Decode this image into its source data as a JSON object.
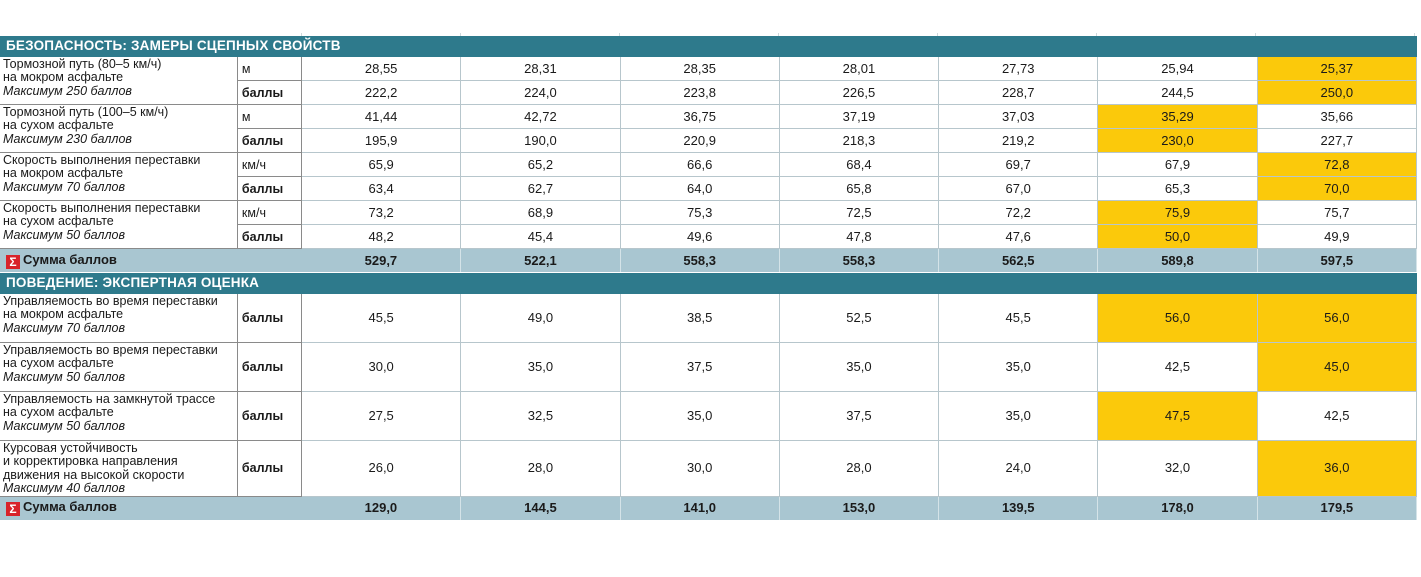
{
  "sections": [
    {
      "title": "БЕЗОПАСНОСТЬ: ЗАМЕРЫ СЦЕПНЫХ СВОЙСТВ",
      "metrics": [
        {
          "label": [
            "Тормозной путь (80–5 км/ч)",
            "на мокром асфальте"
          ],
          "max": "Максимум 250 баллов",
          "unit": "м",
          "points_label": "баллы",
          "measured": [
            "28,55",
            "28,31",
            "28,35",
            "28,01",
            "27,73",
            "25,94",
            "25,37"
          ],
          "points": [
            "222,2",
            "224,0",
            "223,8",
            "226,5",
            "228,7",
            "244,5",
            "250,0"
          ],
          "measured_highlight": [
            false,
            false,
            false,
            false,
            false,
            false,
            true
          ],
          "points_highlight": [
            false,
            false,
            false,
            false,
            false,
            false,
            true
          ]
        },
        {
          "label": [
            "Тормозной путь (100–5 км/ч)",
            "на сухом асфальте"
          ],
          "max": "Максимум 230 баллов",
          "unit": "м",
          "points_label": "баллы",
          "measured": [
            "41,44",
            "42,72",
            "36,75",
            "37,19",
            "37,03",
            "35,29",
            "35,66"
          ],
          "points": [
            "195,9",
            "190,0",
            "220,9",
            "218,3",
            "219,2",
            "230,0",
            "227,7"
          ],
          "measured_highlight": [
            false,
            false,
            false,
            false,
            false,
            true,
            false
          ],
          "points_highlight": [
            false,
            false,
            false,
            false,
            false,
            true,
            false
          ]
        },
        {
          "label": [
            "Скорость выполнения переставки",
            "на мокром асфальте"
          ],
          "max": "Максимум 70 баллов",
          "unit": "км/ч",
          "points_label": "баллы",
          "measured": [
            "65,9",
            "65,2",
            "66,6",
            "68,4",
            "69,7",
            "67,9",
            "72,8"
          ],
          "points": [
            "63,4",
            "62,7",
            "64,0",
            "65,8",
            "67,0",
            "65,3",
            "70,0"
          ],
          "measured_highlight": [
            false,
            false,
            false,
            false,
            false,
            false,
            true
          ],
          "points_highlight": [
            false,
            false,
            false,
            false,
            false,
            false,
            true
          ]
        },
        {
          "label": [
            "Скорость выполнения переставки",
            "на сухом асфальте"
          ],
          "max": "Максимум 50 баллов",
          "unit": "км/ч",
          "points_label": "баллы",
          "measured": [
            "73,2",
            "68,9",
            "75,3",
            "72,5",
            "72,2",
            "75,9",
            "75,7"
          ],
          "points": [
            "48,2",
            "45,4",
            "49,6",
            "47,8",
            "47,6",
            "50,0",
            "49,9"
          ],
          "measured_highlight": [
            false,
            false,
            false,
            false,
            false,
            true,
            false
          ],
          "points_highlight": [
            false,
            false,
            false,
            false,
            false,
            true,
            false
          ]
        }
      ],
      "sum": {
        "sigma": "Σ",
        "label": "Сумма баллов",
        "values": [
          "529,7",
          "522,1",
          "558,3",
          "558,3",
          "562,5",
          "589,8",
          "597,5"
        ]
      }
    },
    {
      "title": "ПОВЕДЕНИЕ: ЭКСПЕРТНАЯ ОЦЕНКА",
      "metrics": [
        {
          "label": [
            "Управляемость во время переставки",
            "на мокром асфальте"
          ],
          "max": "Максимум 70 баллов",
          "points_label": "баллы",
          "points": [
            "45,5",
            "49,0",
            "38,5",
            "52,5",
            "45,5",
            "56,0",
            "56,0"
          ],
          "points_highlight": [
            false,
            false,
            false,
            false,
            false,
            true,
            true
          ]
        },
        {
          "label": [
            "Управляемость во время переставки",
            "на сухом асфальте"
          ],
          "max": "Максимум 50 баллов",
          "points_label": "баллы",
          "points": [
            "30,0",
            "35,0",
            "37,5",
            "35,0",
            "35,0",
            "42,5",
            "45,0"
          ],
          "points_highlight": [
            false,
            false,
            false,
            false,
            false,
            false,
            true
          ]
        },
        {
          "label": [
            "Управляемость на замкнутой трассе",
            "на сухом асфальте"
          ],
          "max": "Максимум 50 баллов",
          "points_label": "баллы",
          "points": [
            "27,5",
            "32,5",
            "35,0",
            "37,5",
            "35,0",
            "47,5",
            "42,5"
          ],
          "points_highlight": [
            false,
            false,
            false,
            false,
            false,
            true,
            false
          ]
        },
        {
          "label": [
            "Курсовая устойчивость",
            "и корректировка направления",
            "движения на высокой скорости"
          ],
          "max": "Максимум 40 баллов",
          "points_label": "баллы",
          "points": [
            "26,0",
            "28,0",
            "30,0",
            "28,0",
            "24,0",
            "32,0",
            "36,0"
          ],
          "points_highlight": [
            false,
            false,
            false,
            false,
            false,
            false,
            true
          ]
        }
      ],
      "sum": {
        "sigma": "Σ",
        "label": "Сумма баллов",
        "values": [
          "129,0",
          "144,5",
          "141,0",
          "153,0",
          "139,5",
          "178,0",
          "179,5"
        ]
      }
    }
  ],
  "colors": {
    "section_header": "#2e7a8c",
    "sum_row": "#a9c6d1",
    "highlight": "#fbc90b",
    "sigma_badge": "#d8232a"
  }
}
